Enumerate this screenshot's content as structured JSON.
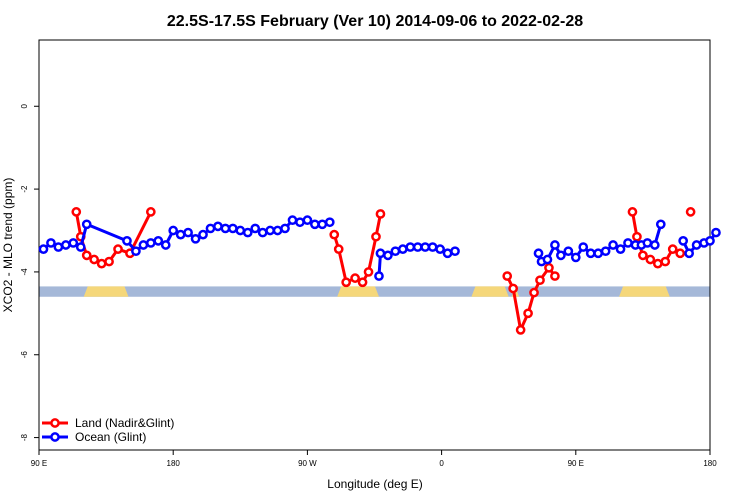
{
  "chart_data": {
    "type": "line",
    "title": "22.5S-17.5S February (Ver 10)   2014-09-06 to 2022-02-28",
    "xlabel": "Longitude (deg E)",
    "ylabel": "XCO2 - MLO trend (ppm)",
    "xlim": [
      90,
      540
    ],
    "ylim": [
      -8.3,
      1.6
    ],
    "x_ticks": [
      90,
      180,
      270,
      360,
      450,
      540
    ],
    "x_tick_labels": [
      "90 E",
      "180",
      "90 W",
      "0",
      "90 E",
      "180"
    ],
    "y_ticks": [
      0,
      -2,
      -4,
      -6,
      -8
    ],
    "y_tick_labels": [
      "0",
      "-2",
      "-4",
      "-6",
      "-8"
    ],
    "grid": false,
    "legend_position": "bottom-left",
    "land_mask": {
      "y_range": [
        -4.6,
        -4.35
      ],
      "ocean_color": "#a5b8d8",
      "land_color": "#f5d77a",
      "land_segments": [
        [
          120,
          150
        ],
        [
          290,
          318
        ],
        [
          380,
          405
        ],
        [
          407,
          412
        ],
        [
          479,
          513
        ]
      ]
    },
    "series": [
      {
        "name": "Land (Nadir&Glint)",
        "color": "#ff0000",
        "segments": [
          [
            {
              "x": 115,
              "y": -2.55
            },
            {
              "x": 118,
              "y": -3.15
            },
            {
              "x": 122,
              "y": -3.6
            },
            {
              "x": 127,
              "y": -3.7
            },
            {
              "x": 132,
              "y": -3.8
            },
            {
              "x": 137,
              "y": -3.75
            },
            {
              "x": 143,
              "y": -3.45
            },
            {
              "x": 151,
              "y": -3.55
            },
            {
              "x": 165,
              "y": -2.55
            }
          ],
          [
            {
              "x": 288,
              "y": -3.1
            },
            {
              "x": 291,
              "y": -3.45
            },
            {
              "x": 296,
              "y": -4.25
            },
            {
              "x": 302,
              "y": -4.15
            },
            {
              "x": 307,
              "y": -4.25
            },
            {
              "x": 311,
              "y": -4.0
            },
            {
              "x": 316,
              "y": -3.15
            },
            {
              "x": 319,
              "y": -2.6
            }
          ],
          [
            {
              "x": 404,
              "y": -4.1
            },
            {
              "x": 408,
              "y": -4.4
            },
            {
              "x": 413,
              "y": -5.4
            },
            {
              "x": 418,
              "y": -5.0
            },
            {
              "x": 422,
              "y": -4.5
            },
            {
              "x": 426,
              "y": -4.2
            },
            {
              "x": 432,
              "y": -3.9
            },
            {
              "x": 436,
              "y": -4.1
            }
          ],
          [
            {
              "x": 488,
              "y": -2.55
            },
            {
              "x": 491,
              "y": -3.15
            },
            {
              "x": 495,
              "y": -3.6
            },
            {
              "x": 500,
              "y": -3.7
            },
            {
              "x": 505,
              "y": -3.8
            },
            {
              "x": 510,
              "y": -3.75
            },
            {
              "x": 515,
              "y": -3.45
            },
            {
              "x": 520,
              "y": -3.55
            }
          ],
          [
            {
              "x": 527,
              "y": -2.55
            }
          ]
        ]
      },
      {
        "name": "Ocean (Glint)",
        "color": "#0000ff",
        "segments": [
          [
            {
              "x": 93,
              "y": -3.45
            },
            {
              "x": 98,
              "y": -3.3
            },
            {
              "x": 103,
              "y": -3.4
            },
            {
              "x": 108,
              "y": -3.35
            },
            {
              "x": 113,
              "y": -3.3
            },
            {
              "x": 118,
              "y": -3.4
            },
            {
              "x": 122,
              "y": -2.85
            },
            {
              "x": 149,
              "y": -3.25
            },
            {
              "x": 155,
              "y": -3.5
            },
            {
              "x": 160,
              "y": -3.35
            },
            {
              "x": 165,
              "y": -3.3
            },
            {
              "x": 170,
              "y": -3.25
            },
            {
              "x": 175,
              "y": -3.35
            },
            {
              "x": 180,
              "y": -3.0
            },
            {
              "x": 185,
              "y": -3.1
            },
            {
              "x": 190,
              "y": -3.05
            },
            {
              "x": 195,
              "y": -3.2
            },
            {
              "x": 200,
              "y": -3.1
            },
            {
              "x": 205,
              "y": -2.95
            },
            {
              "x": 210,
              "y": -2.9
            },
            {
              "x": 215,
              "y": -2.95
            },
            {
              "x": 220,
              "y": -2.95
            },
            {
              "x": 225,
              "y": -3.0
            },
            {
              "x": 230,
              "y": -3.05
            },
            {
              "x": 235,
              "y": -2.95
            },
            {
              "x": 240,
              "y": -3.05
            },
            {
              "x": 245,
              "y": -3.0
            },
            {
              "x": 250,
              "y": -3.0
            },
            {
              "x": 255,
              "y": -2.95
            },
            {
              "x": 260,
              "y": -2.75
            },
            {
              "x": 265,
              "y": -2.8
            },
            {
              "x": 270,
              "y": -2.75
            },
            {
              "x": 275,
              "y": -2.85
            },
            {
              "x": 280,
              "y": -2.85
            },
            {
              "x": 285,
              "y": -2.8
            }
          ],
          [
            {
              "x": 318,
              "y": -4.1
            },
            {
              "x": 319,
              "y": -3.55
            },
            {
              "x": 324,
              "y": -3.6
            },
            {
              "x": 329,
              "y": -3.5
            },
            {
              "x": 334,
              "y": -3.45
            },
            {
              "x": 339,
              "y": -3.4
            },
            {
              "x": 344,
              "y": -3.4
            },
            {
              "x": 349,
              "y": -3.4
            },
            {
              "x": 354,
              "y": -3.4
            },
            {
              "x": 359,
              "y": -3.45
            },
            {
              "x": 364,
              "y": -3.55
            },
            {
              "x": 369,
              "y": -3.5
            }
          ],
          [
            {
              "x": 425,
              "y": -3.55
            },
            {
              "x": 427,
              "y": -3.75
            },
            {
              "x": 431,
              "y": -3.7
            },
            {
              "x": 436,
              "y": -3.35
            },
            {
              "x": 440,
              "y": -3.6
            },
            {
              "x": 445,
              "y": -3.5
            },
            {
              "x": 450,
              "y": -3.65
            },
            {
              "x": 455,
              "y": -3.4
            },
            {
              "x": 460,
              "y": -3.55
            },
            {
              "x": 465,
              "y": -3.55
            },
            {
              "x": 470,
              "y": -3.5
            },
            {
              "x": 475,
              "y": -3.35
            },
            {
              "x": 480,
              "y": -3.45
            },
            {
              "x": 485,
              "y": -3.3
            },
            {
              "x": 490,
              "y": -3.35
            },
            {
              "x": 494,
              "y": -3.35
            },
            {
              "x": 498,
              "y": -3.3
            },
            {
              "x": 503,
              "y": -3.35
            },
            {
              "x": 507,
              "y": -2.85
            }
          ],
          [
            {
              "x": 522,
              "y": -3.25
            },
            {
              "x": 526,
              "y": -3.55
            },
            {
              "x": 531,
              "y": -3.35
            },
            {
              "x": 536,
              "y": -3.3
            },
            {
              "x": 540,
              "y": -3.25
            },
            {
              "x": 544,
              "y": -3.05
            }
          ]
        ]
      }
    ]
  }
}
